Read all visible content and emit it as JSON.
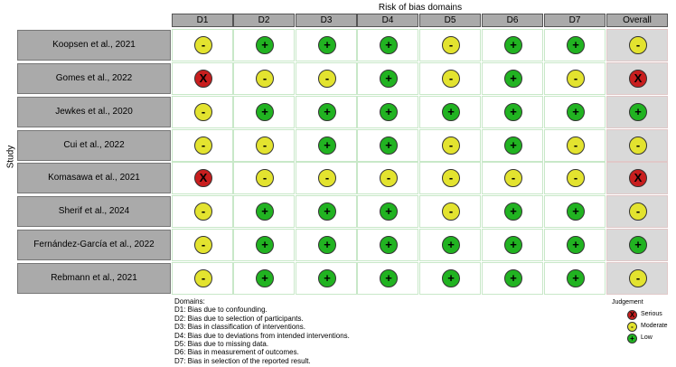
{
  "title": "Risk of bias domains",
  "y_axis_label": "Study",
  "columns": [
    "D1",
    "D2",
    "D3",
    "D4",
    "D5",
    "D6",
    "D7",
    "Overall"
  ],
  "symbols": {
    "low": "+",
    "moderate": "-",
    "serious": "X"
  },
  "colors": {
    "low": "#21b321",
    "moderate": "#e3e32f",
    "serious": "#c81e1e"
  },
  "studies": [
    {
      "name": "Koopsen et al., 2021",
      "ratings": [
        "moderate",
        "low",
        "low",
        "low",
        "moderate",
        "low",
        "low",
        "moderate"
      ]
    },
    {
      "name": "Gomes et al., 2022",
      "ratings": [
        "serious",
        "moderate",
        "moderate",
        "low",
        "moderate",
        "low",
        "moderate",
        "serious"
      ]
    },
    {
      "name": "Jewkes et al., 2020",
      "ratings": [
        "moderate",
        "low",
        "low",
        "low",
        "low",
        "low",
        "low",
        "low"
      ]
    },
    {
      "name": "Cui et al., 2022",
      "ratings": [
        "moderate",
        "moderate",
        "low",
        "low",
        "moderate",
        "low",
        "moderate",
        "moderate"
      ]
    },
    {
      "name": "Komasawa et al., 2021",
      "ratings": [
        "serious",
        "moderate",
        "moderate",
        "moderate",
        "moderate",
        "moderate",
        "moderate",
        "serious"
      ]
    },
    {
      "name": "Sherif et al., 2024",
      "ratings": [
        "moderate",
        "low",
        "low",
        "low",
        "moderate",
        "low",
        "low",
        "moderate"
      ]
    },
    {
      "name": "Fernández-García et al., 2022",
      "ratings": [
        "moderate",
        "low",
        "low",
        "low",
        "low",
        "low",
        "low",
        "low"
      ]
    },
    {
      "name": "Rebmann et al., 2021",
      "ratings": [
        "moderate",
        "low",
        "low",
        "low",
        "low",
        "low",
        "low",
        "moderate"
      ]
    }
  ],
  "domains_title": "Domains:",
  "domains": [
    "D1: Bias due to confounding.",
    "D2: Bias due to selection of participants.",
    "D3: Bias in classification of interventions.",
    "D4: Bias due to deviations from intended interventions.",
    "D5: Bias due to missing data.",
    "D6: Bias in measurement of outcomes.",
    "D7: Bias in selection of the reported result."
  ],
  "legend": {
    "title": "Judgement",
    "items": [
      {
        "key": "serious",
        "label": "Serious"
      },
      {
        "key": "moderate",
        "label": "Moderate"
      },
      {
        "key": "low",
        "label": "Low"
      }
    ]
  }
}
